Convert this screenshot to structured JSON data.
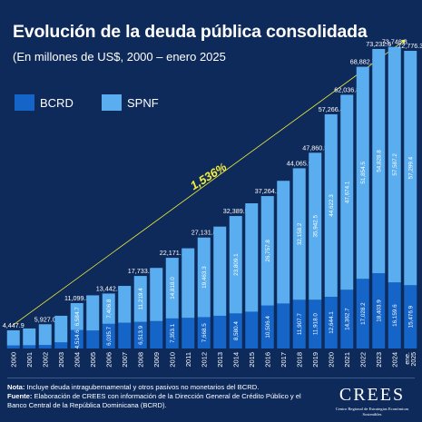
{
  "header": {
    "title": "Evolución de la deuda pública consolidada",
    "subtitle": "(En millones de US$, 2000 – enero 2025"
  },
  "legend": [
    {
      "name": "BCRD",
      "color": "#1565c8"
    },
    {
      "name": "SPNF",
      "color": "#5aaeef"
    }
  ],
  "annotation": {
    "growth_label": "1,536%",
    "color": "#f5ef3c"
  },
  "footer": {
    "note_label": "Nota:",
    "note_text": " Incluye deuda intragubernamental y otros pasivos no monetarios del BCRD.",
    "source_label": "Fuente:",
    "source_text": " Elaboración de CREES con información de la Dirección General de Crédito Público y el Banco Central de la República Dominicana (BCRD)."
  },
  "logo": {
    "name": "CREES",
    "subtitle": "Centro Regional de Estrategias Económicas Sostenibles"
  },
  "chart_data": {
    "type": "bar",
    "stacked": true,
    "categories": [
      "2000",
      "2001",
      "2002",
      "2003",
      "2004",
      "2005",
      "2006",
      "2007",
      "2008",
      "2009",
      "2010",
      "2011",
      "2012",
      "2013",
      "2014",
      "2015",
      "2016",
      "2017",
      "2018",
      "2019",
      "2020",
      "2021",
      "2022",
      "2023",
      "2024",
      "ene. 2025"
    ],
    "series": [
      {
        "name": "BCRD",
        "color": "#1565c8",
        "values": [
          750,
          800,
          850,
          1500,
          4514.6,
          4400,
          6035.7,
          6300,
          6513.9,
          6700,
          7353.1,
          7500,
          7668.5,
          8000,
          8580.4,
          9000,
          10506.4,
          11000,
          11907.7,
          11918.0,
          12644.1,
          14362.7,
          17028.2,
          18403.9,
          16159.6,
          15476.9
        ],
        "labels": [
          "",
          "",
          "",
          "",
          "4,514.6",
          "",
          "6,035.7",
          "",
          "6,513.9",
          "",
          "7,353.1",
          "",
          "7,668.5",
          "",
          "8,580.4",
          "",
          "10,506.4",
          "",
          "11,907.7",
          "11,918.0",
          "12,644.1",
          "14,362.7",
          "17,028.2",
          "18,403.9",
          "16,159.6",
          "15,476.9"
        ]
      },
      {
        "name": "SPNF",
        "color": "#5aaeef",
        "values": [
          3697.9,
          4100,
          5077.0,
          6500,
          6584.7,
          8600,
          7406.8,
          9000,
          11219.4,
          13000,
          14818.0,
          17000,
          19463.3,
          21800,
          23809.1,
          26500,
          26757.8,
          30000,
          32158.2,
          35942.5,
          44622.3,
          47674.1,
          51854.5,
          54828.8,
          57587.2,
          57299.4
        ],
        "labels": [
          "",
          "",
          "",
          "",
          "6,584.7",
          "",
          "7,406.8",
          "",
          "11,219.4",
          "",
          "14,818.0",
          "",
          "19,463.3",
          "",
          "23,809.1",
          "",
          "26,757.8",
          "",
          "32,158.2",
          "35,942.5",
          "44,622.3",
          "47,674.1",
          "51,854.5",
          "54,828.8",
          "57,587.2",
          "57,299.4"
        ]
      }
    ],
    "totals": [
      4447.9,
      4900,
      5927.0,
      8000,
      11099.3,
      13000,
      13442.5,
      15300,
      17733.3,
      19700,
      22171.1,
      24500,
      27131.8,
      29800,
      32389.5,
      35500,
      37264.2,
      41000,
      44065.9,
      47860.5,
      57266.4,
      62036.8,
      68882.7,
      73232.6,
      73746.8,
      72776.3
    ],
    "total_labels": [
      "4,447.9",
      "",
      "5,927.0",
      "",
      "11,099.3",
      "",
      "13,442.5",
      "",
      "17,733.3",
      "",
      "22,171.1",
      "",
      "27,131.8",
      "",
      "32,389.5",
      "",
      "37,264.2",
      "",
      "44,065.9",
      "47,860.5",
      "57,266.4",
      "62,036.8",
      "68,882.7",
      "73,232.6",
      "73,746.8",
      "72,776.3"
    ],
    "xlabel": "",
    "ylabel": "",
    "ylim": [
      0,
      75000
    ],
    "grid": false,
    "legend_position": "top-left"
  }
}
